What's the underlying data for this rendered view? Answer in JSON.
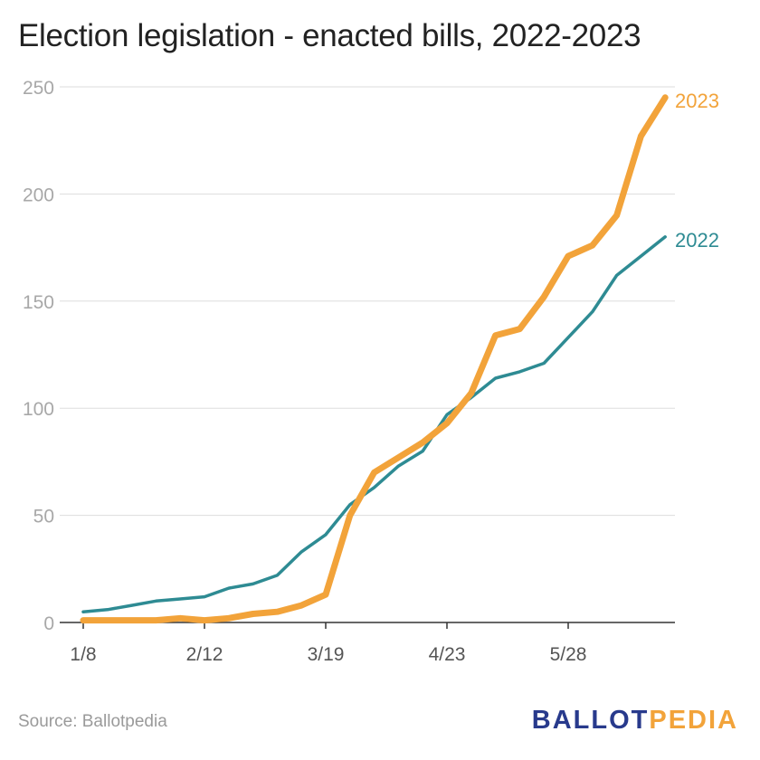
{
  "title": "Election legislation - enacted bills, 2022-2023",
  "source": "Source: Ballotpedia",
  "logo": {
    "part1": "BALLOT",
    "part2": "PEDIA",
    "colors": {
      "part1": "#283a8c",
      "part2": "#f2a33a"
    }
  },
  "colors": {
    "2023": "#f2a33a",
    "2022": "#2e8b93",
    "grid": "#dddddd",
    "axis": "#333333"
  },
  "chart_data": {
    "type": "line",
    "title": "Election legislation - enacted bills, 2022-2023",
    "xlabel": "",
    "ylabel": "",
    "ylim": [
      0,
      250
    ],
    "yticks": [
      0,
      50,
      100,
      150,
      200,
      250
    ],
    "x_tick_labels": [
      "1/8",
      "2/12",
      "3/19",
      "4/23",
      "5/28"
    ],
    "x_tick_weeks": [
      0,
      5,
      10,
      15,
      20
    ],
    "x_unit": "week",
    "grid": true,
    "legend": "inline labels at line ends (right)",
    "x": [
      0,
      1,
      2,
      3,
      4,
      5,
      6,
      7,
      8,
      9,
      10,
      11,
      12,
      13,
      14,
      15,
      16,
      17,
      18,
      19,
      20,
      21,
      22,
      23,
      24
    ],
    "series": [
      {
        "name": "2023",
        "values": [
          1,
          1,
          1,
          1,
          2,
          1,
          2,
          4,
          5,
          8,
          13,
          50,
          70,
          77,
          84,
          93,
          107,
          134,
          137,
          152,
          171,
          176,
          190,
          227,
          245
        ]
      },
      {
        "name": "2022",
        "values": [
          5,
          6,
          8,
          10,
          11,
          12,
          16,
          18,
          22,
          33,
          41,
          55,
          63,
          73,
          80,
          97,
          105,
          114,
          117,
          121,
          133,
          145,
          162,
          171,
          180
        ]
      }
    ]
  }
}
